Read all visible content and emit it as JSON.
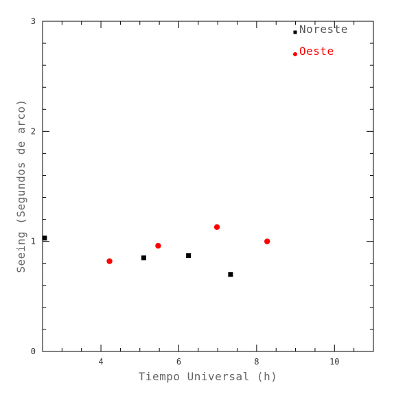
{
  "chart_data": {
    "type": "scatter",
    "xlabel": "Tiempo Universal (h)",
    "ylabel": "Seeing (Segundos de arco)",
    "xlim": [
      2.5,
      11
    ],
    "ylim": [
      0,
      3
    ],
    "xticks_major": [
      4,
      6,
      8,
      10
    ],
    "xtick_labels": [
      "4",
      "6",
      "8",
      "10"
    ],
    "yticks_major": [
      0,
      1,
      2,
      3
    ],
    "ytick_labels": [
      "0",
      "1",
      "2",
      "3"
    ],
    "legend_position": "top-right",
    "series": [
      {
        "name": "Noreste",
        "marker": "square",
        "color": "#000000",
        "points": [
          {
            "x": 2.55,
            "y": 1.03
          },
          {
            "x": 5.1,
            "y": 0.85
          },
          {
            "x": 6.25,
            "y": 0.87
          },
          {
            "x": 7.33,
            "y": 0.7
          }
        ]
      },
      {
        "name": "Oeste",
        "marker": "circle",
        "color": "#ff0000",
        "points": [
          {
            "x": 4.22,
            "y": 0.82
          },
          {
            "x": 5.47,
            "y": 0.96
          },
          {
            "x": 6.98,
            "y": 1.13
          },
          {
            "x": 8.27,
            "y": 1.0
          }
        ]
      }
    ]
  }
}
